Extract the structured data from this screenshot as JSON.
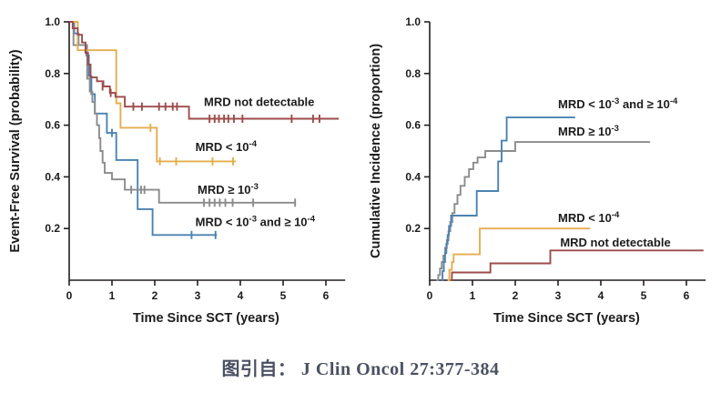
{
  "caption": {
    "text": "图引自： J Clin Oncol 27:377-384"
  },
  "colors": {
    "mrd_not_detectable": "#9e4b4b",
    "mrd_lt_1e4": "#e3ae4e",
    "mrd_ge_1e3": "#8c8c8c",
    "mrd_between": "#4b83b2",
    "axis": "#231f20",
    "tick_text": "#1c1c1c",
    "annotation_text": "#1c1c1c",
    "caption_text": "#4a5161"
  },
  "chart_data": [
    {
      "type": "line",
      "subtype": "kaplan-meier-step",
      "title": "",
      "xlabel": "Time Since SCT (years)",
      "ylabel": "Event-Free Survival (probability)",
      "xlim": [
        0,
        6.45
      ],
      "ylim": [
        0,
        1.0
      ],
      "xticks": [
        0,
        1,
        2,
        3,
        4,
        5,
        6
      ],
      "yticks": [
        0.2,
        0.4,
        0.6,
        0.8,
        1.0
      ],
      "grid": false,
      "legend_position": "inline-annotations",
      "series": [
        {
          "name": "MRD not detectable",
          "color": "#9e4b4b",
          "points": [
            [
              0,
              1.0
            ],
            [
              0.08,
              0.975
            ],
            [
              0.2,
              0.95
            ],
            [
              0.3,
              0.92
            ],
            [
              0.38,
              0.88
            ],
            [
              0.44,
              0.835
            ],
            [
              0.5,
              0.785
            ],
            [
              0.65,
              0.77
            ],
            [
              0.8,
              0.75
            ],
            [
              0.95,
              0.725
            ],
            [
              1.08,
              0.71
            ],
            [
              1.3,
              0.672
            ],
            [
              2.8,
              0.625
            ],
            [
              6.3,
              0.625
            ]
          ],
          "censors": [
            [
              0.78,
              0.75
            ],
            [
              0.97,
              0.725
            ],
            [
              1.5,
              0.672
            ],
            [
              1.7,
              0.672
            ],
            [
              2.1,
              0.672
            ],
            [
              2.25,
              0.672
            ],
            [
              2.42,
              0.672
            ],
            [
              2.52,
              0.672
            ],
            [
              3.28,
              0.625
            ],
            [
              3.4,
              0.625
            ],
            [
              3.5,
              0.625
            ],
            [
              3.62,
              0.625
            ],
            [
              3.72,
              0.625
            ],
            [
              3.85,
              0.625
            ],
            [
              4.05,
              0.625
            ],
            [
              5.2,
              0.625
            ],
            [
              5.7,
              0.625
            ],
            [
              5.85,
              0.625
            ]
          ]
        },
        {
          "name": "MRD < 10^-4",
          "color": "#e3ae4e",
          "points": [
            [
              0,
              1.0
            ],
            [
              0.2,
              0.89
            ],
            [
              1.1,
              0.685
            ],
            [
              1.2,
              0.59
            ],
            [
              2.05,
              0.46
            ],
            [
              3.9,
              0.46
            ]
          ],
          "censors": [
            [
              1.9,
              0.59
            ],
            [
              2.12,
              0.46
            ],
            [
              2.5,
              0.46
            ],
            [
              3.35,
              0.46
            ],
            [
              3.83,
              0.46
            ]
          ]
        },
        {
          "name": "MRD >= 10^-3",
          "color": "#8c8c8c",
          "points": [
            [
              0,
              1.0
            ],
            [
              0.1,
              0.91
            ],
            [
              0.42,
              0.78
            ],
            [
              0.48,
              0.73
            ],
            [
              0.54,
              0.69
            ],
            [
              0.6,
              0.645
            ],
            [
              0.65,
              0.6
            ],
            [
              0.7,
              0.55
            ],
            [
              0.73,
              0.5
            ],
            [
              0.78,
              0.455
            ],
            [
              0.83,
              0.415
            ],
            [
              1.0,
              0.39
            ],
            [
              1.3,
              0.35
            ],
            [
              2.1,
              0.3
            ],
            [
              5.3,
              0.3
            ]
          ],
          "censors": [
            [
              1.45,
              0.35
            ],
            [
              1.68,
              0.35
            ],
            [
              1.76,
              0.35
            ],
            [
              3.15,
              0.3
            ],
            [
              3.28,
              0.3
            ],
            [
              3.4,
              0.3
            ],
            [
              3.52,
              0.3
            ],
            [
              3.65,
              0.3
            ],
            [
              3.82,
              0.3
            ],
            [
              4.3,
              0.3
            ],
            [
              5.28,
              0.3
            ]
          ]
        },
        {
          "name": "MRD < 10^-3 and >= 10^-4",
          "color": "#4b83b2",
          "points": [
            [
              0,
              1.0
            ],
            [
              0.12,
              0.955
            ],
            [
              0.22,
              0.91
            ],
            [
              0.4,
              0.87
            ],
            [
              0.46,
              0.79
            ],
            [
              0.52,
              0.72
            ],
            [
              0.6,
              0.645
            ],
            [
              0.88,
              0.57
            ],
            [
              1.1,
              0.465
            ],
            [
              1.6,
              0.275
            ],
            [
              1.95,
              0.175
            ],
            [
              3.45,
              0.175
            ]
          ],
          "censors": [
            [
              1.0,
              0.57
            ],
            [
              2.86,
              0.175
            ],
            [
              3.42,
              0.175
            ]
          ]
        }
      ],
      "annotations": [
        {
          "x": 3.15,
          "y": 0.675,
          "parts": [
            {
              "t": "MRD not detectable"
            }
          ]
        },
        {
          "x": 2.95,
          "y": 0.5,
          "parts": [
            {
              "t": "MRD < 10"
            },
            {
              "t": "-4",
              "sup": true
            }
          ]
        },
        {
          "x": 3.0,
          "y": 0.335,
          "parts": [
            {
              "t": "MRD ≥ 10"
            },
            {
              "t": "-3",
              "sup": true
            }
          ]
        },
        {
          "x": 2.95,
          "y": 0.21,
          "parts": [
            {
              "t": "MRD < 10"
            },
            {
              "t": "-3",
              "sup": true
            },
            {
              "t": " and ≥ 10"
            },
            {
              "t": "-4",
              "sup": true
            }
          ]
        }
      ]
    },
    {
      "type": "line",
      "subtype": "cumulative-incidence-step",
      "title": "",
      "xlabel": "Time Since SCT (years)",
      "ylabel": "Cumulative Incidence (proportion)",
      "xlim": [
        0,
        6.45
      ],
      "ylim": [
        0,
        1.0
      ],
      "xticks": [
        0,
        1,
        2,
        3,
        4,
        5,
        6
      ],
      "yticks": [
        0.2,
        0.4,
        0.6,
        0.8,
        1.0
      ],
      "grid": false,
      "legend_position": "inline-annotations",
      "series": [
        {
          "name": "MRD < 10^-3 and >= 10^-4",
          "color": "#4b83b2",
          "points": [
            [
              0.27,
              0
            ],
            [
              0.3,
              0.035
            ],
            [
              0.33,
              0.07
            ],
            [
              0.36,
              0.105
            ],
            [
              0.39,
              0.14
            ],
            [
              0.42,
              0.175
            ],
            [
              0.45,
              0.21
            ],
            [
              0.5,
              0.25
            ],
            [
              1.1,
              0.345
            ],
            [
              1.6,
              0.46
            ],
            [
              1.68,
              0.54
            ],
            [
              1.8,
              0.63
            ],
            [
              3.4,
              0.63
            ]
          ],
          "censors": []
        },
        {
          "name": "MRD >= 10^-3",
          "color": "#8c8c8c",
          "points": [
            [
              0.15,
              0
            ],
            [
              0.2,
              0.02
            ],
            [
              0.24,
              0.045
            ],
            [
              0.28,
              0.07
            ],
            [
              0.32,
              0.095
            ],
            [
              0.36,
              0.125
            ],
            [
              0.4,
              0.155
            ],
            [
              0.44,
              0.19
            ],
            [
              0.48,
              0.225
            ],
            [
              0.53,
              0.26
            ],
            [
              0.58,
              0.295
            ],
            [
              0.65,
              0.33
            ],
            [
              0.72,
              0.365
            ],
            [
              0.82,
              0.4
            ],
            [
              0.92,
              0.43
            ],
            [
              1.02,
              0.455
            ],
            [
              1.12,
              0.475
            ],
            [
              1.3,
              0.5
            ],
            [
              2.0,
              0.535
            ],
            [
              5.15,
              0.535
            ]
          ],
          "censors": []
        },
        {
          "name": "MRD < 10^-4",
          "color": "#e3ae4e",
          "points": [
            [
              0.42,
              0
            ],
            [
              0.46,
              0.04
            ],
            [
              0.52,
              0.07
            ],
            [
              0.56,
              0.1
            ],
            [
              1.17,
              0.2
            ],
            [
              3.75,
              0.2
            ]
          ],
          "censors": []
        },
        {
          "name": "MRD not detectable",
          "color": "#9e4b4b",
          "points": [
            [
              0.48,
              0
            ],
            [
              0.52,
              0.03
            ],
            [
              1.42,
              0.065
            ],
            [
              2.82,
              0.115
            ],
            [
              6.4,
              0.115
            ]
          ],
          "censors": []
        }
      ],
      "annotations": [
        {
          "x": 3.0,
          "y": 0.665,
          "parts": [
            {
              "t": "MRD < 10"
            },
            {
              "t": "-3",
              "sup": true
            },
            {
              "t": " and ≥ 10"
            },
            {
              "t": "-4",
              "sup": true
            }
          ]
        },
        {
          "x": 3.0,
          "y": 0.56,
          "parts": [
            {
              "t": "MRD ≥ 10"
            },
            {
              "t": "-3",
              "sup": true
            }
          ]
        },
        {
          "x": 3.0,
          "y": 0.225,
          "parts": [
            {
              "t": "MRD < 10"
            },
            {
              "t": "-4",
              "sup": true
            }
          ]
        },
        {
          "x": 3.05,
          "y": 0.13,
          "parts": [
            {
              "t": "MRD not detectable"
            }
          ]
        }
      ]
    }
  ]
}
